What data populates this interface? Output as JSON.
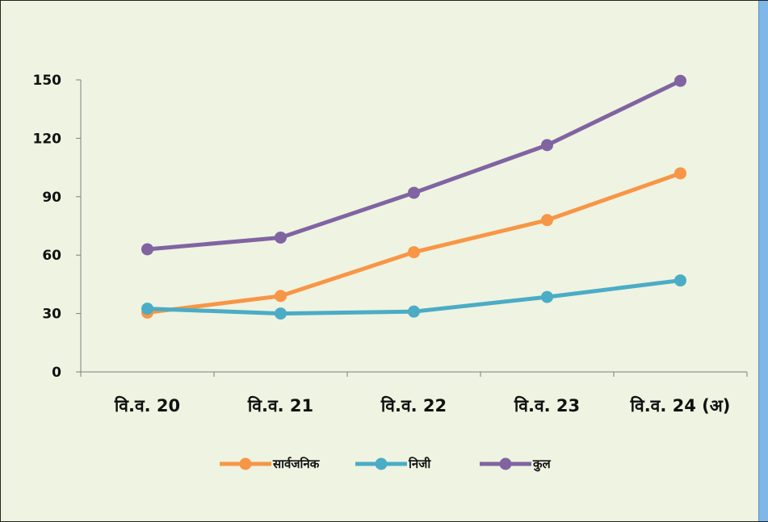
{
  "chart_data": {
    "type": "line",
    "categories": [
      "वि.व. 20",
      "वि.व. 21",
      "वि.व. 22",
      "वि.व. 23",
      "वि.व. 24 (अ)"
    ],
    "ylim": [
      0,
      150
    ],
    "yticks": [
      0,
      30,
      60,
      90,
      120,
      150
    ],
    "grid": false,
    "legend_position": "bottom",
    "series": [
      {
        "name": "सार्वजनिक",
        "color": "#f79646",
        "values": [
          30.5,
          39,
          61.5,
          78,
          102
        ]
      },
      {
        "name": "निजी",
        "color": "#4bacc6",
        "values": [
          32.5,
          30,
          31,
          38.5,
          47
        ]
      },
      {
        "name": "कुल",
        "color": "#8064a2",
        "values": [
          63,
          69,
          92,
          116.5,
          149.5
        ]
      }
    ]
  },
  "colors": {
    "background": "#eff3e1",
    "border": "#222222",
    "right_strip": "#7fb7e8"
  }
}
